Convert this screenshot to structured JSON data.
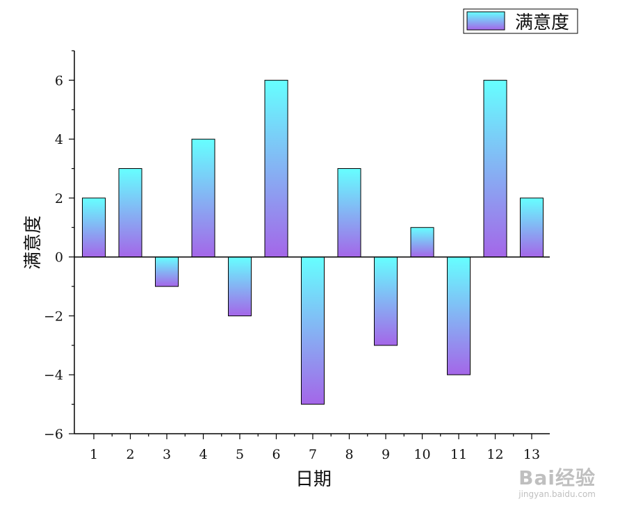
{
  "chart_data": {
    "type": "bar",
    "categories": [
      "1",
      "2",
      "3",
      "4",
      "5",
      "6",
      "7",
      "8",
      "9",
      "10",
      "11",
      "12",
      "13"
    ],
    "series": [
      {
        "name": "满意度",
        "values": [
          2,
          3,
          -1,
          4,
          -2,
          6,
          -5,
          3,
          -3,
          1,
          -4,
          6,
          2
        ]
      }
    ],
    "xlabel": "日期",
    "ylabel": "满意度",
    "ylim": [
      -6,
      7
    ],
    "yticks": [
      -6,
      -4,
      -2,
      0,
      2,
      4,
      6
    ],
    "yticks_labels": [
      "−6",
      "−4",
      "−2",
      "0",
      "2",
      "4",
      "6"
    ],
    "grid": false,
    "legend_position": "top-right",
    "colors": {
      "bar_top": "#66ffff",
      "bar_bottom": "#a466e8",
      "axis": "#000000"
    }
  },
  "watermark": {
    "brand": "Bai经验",
    "url": "jingyan.baidu.com"
  }
}
